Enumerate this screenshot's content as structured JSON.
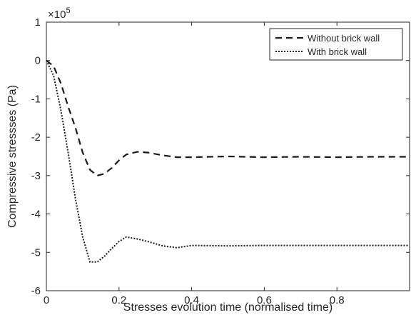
{
  "chart_data": {
    "type": "line",
    "title": "",
    "xlabel": "Stresses evolution time (normalised time)",
    "ylabel": "Compressive stressses (Pa)",
    "y_exponent_label": "×10",
    "y_exponent_power": "5",
    "xlim": [
      0,
      1
    ],
    "ylim": [
      -6,
      1
    ],
    "y_multiplier": 100000,
    "x_ticks": [
      0,
      0.2,
      0.4,
      0.6,
      0.8
    ],
    "x_tick_labels": [
      "0",
      "0.2",
      "0.4",
      "0.6",
      "0.8"
    ],
    "y_ticks": [
      1,
      0,
      -1,
      -2,
      -3,
      -4,
      -5,
      -6
    ],
    "y_tick_labels": [
      "1",
      "0",
      "-1",
      "-2",
      "-3",
      "-4",
      "-5",
      "-6"
    ],
    "grid": false,
    "legend_position": "top-right",
    "series": [
      {
        "name": "Without brick wall",
        "style": "dashed",
        "color": "#1a1a1a",
        "x": [
          0,
          0.02,
          0.04,
          0.06,
          0.08,
          0.1,
          0.12,
          0.14,
          0.16,
          0.18,
          0.2,
          0.22,
          0.25,
          0.28,
          0.32,
          0.36,
          0.4,
          0.5,
          0.6,
          0.7,
          0.8,
          0.9,
          1.0
        ],
        "y": [
          0,
          -0.15,
          -0.6,
          -1.2,
          -1.75,
          -2.4,
          -2.85,
          -3.0,
          -2.95,
          -2.8,
          -2.6,
          -2.45,
          -2.38,
          -2.4,
          -2.47,
          -2.52,
          -2.52,
          -2.5,
          -2.52,
          -2.51,
          -2.52,
          -2.51,
          -2.51
        ]
      },
      {
        "name": "With brick wall",
        "style": "dotted",
        "color": "#1a1a1a",
        "x": [
          0,
          0.02,
          0.04,
          0.06,
          0.08,
          0.1,
          0.12,
          0.14,
          0.16,
          0.18,
          0.2,
          0.22,
          0.25,
          0.28,
          0.32,
          0.36,
          0.4,
          0.5,
          0.6,
          0.7,
          0.8,
          0.9,
          1.0
        ],
        "y": [
          0,
          -0.4,
          -1.3,
          -2.4,
          -3.6,
          -4.6,
          -5.25,
          -5.25,
          -5.1,
          -4.9,
          -4.72,
          -4.6,
          -4.65,
          -4.72,
          -4.83,
          -4.88,
          -4.82,
          -4.83,
          -4.82,
          -4.82,
          -4.82,
          -4.82,
          -4.82
        ]
      }
    ]
  }
}
